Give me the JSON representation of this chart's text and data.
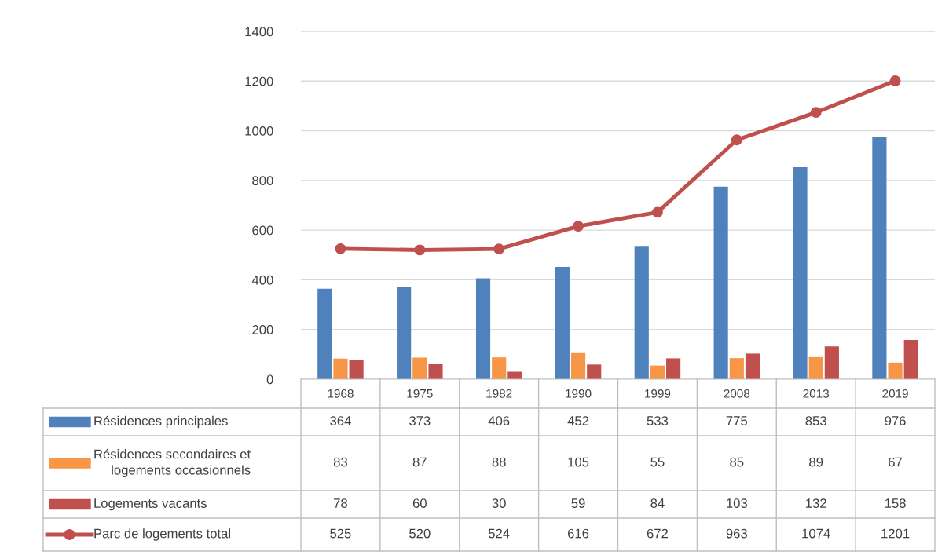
{
  "chart_data": {
    "type": "bar",
    "categories": [
      "1968",
      "1975",
      "1982",
      "1990",
      "1999",
      "2008",
      "2013",
      "2019"
    ],
    "series": [
      {
        "name": "Résidences principales",
        "color": "#4f81bd",
        "values": [
          364,
          373,
          406,
          452,
          533,
          775,
          853,
          976
        ]
      },
      {
        "name": "Résidences secondaires et\nlogements occasionnels",
        "color": "#f79646",
        "values": [
          83,
          87,
          88,
          105,
          55,
          85,
          89,
          67
        ]
      },
      {
        "name": "Logements vacants",
        "color": "#c0504d",
        "values": [
          78,
          60,
          30,
          59,
          84,
          103,
          132,
          158
        ]
      },
      {
        "name": "Parc de logements total",
        "color": "#c0504d",
        "type": "line",
        "marker": "circle",
        "line_style": "solid",
        "values": [
          525,
          520,
          524,
          616,
          672,
          963,
          1074,
          1201
        ]
      }
    ],
    "ylim": [
      0,
      1400
    ],
    "yticks": [
      0,
      200,
      400,
      600,
      800,
      1000,
      1200,
      1400
    ],
    "grid": "y",
    "legend": "bottom",
    "data_labels": true
  }
}
